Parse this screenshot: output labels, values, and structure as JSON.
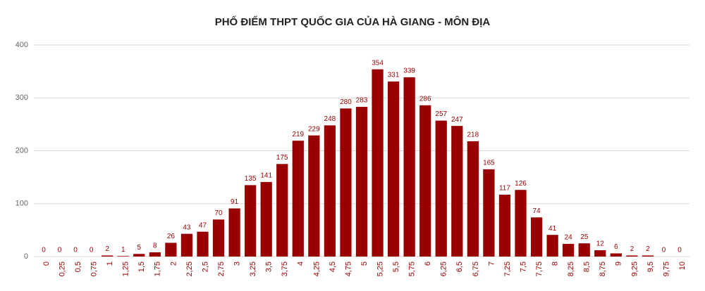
{
  "chart_data": {
    "type": "bar",
    "title": "PHỔ ĐIỂM THPT QUỐC GIA CỦA HÀ GIANG - MÔN ĐỊA",
    "categories": [
      "0",
      "0,25",
      "0,5",
      "0,75",
      "1",
      "1,25",
      "1,5",
      "1,75",
      "2",
      "2,25",
      "2,5",
      "2,75",
      "3",
      "3,25",
      "3,5",
      "3,75",
      "4",
      "4,25",
      "4,5",
      "4,75",
      "5",
      "5,25",
      "5,5",
      "5,75",
      "6",
      "6,25",
      "6,5",
      "6,75",
      "7",
      "7,25",
      "7,5",
      "7,75",
      "8",
      "8,25",
      "8,5",
      "8,75",
      "9",
      "9,25",
      "9,5",
      "9,75",
      "10"
    ],
    "values": [
      0,
      0,
      0,
      0,
      2,
      1,
      5,
      8,
      26,
      43,
      47,
      70,
      91,
      135,
      141,
      175,
      219,
      229,
      248,
      280,
      283,
      354,
      331,
      339,
      286,
      257,
      247,
      218,
      165,
      117,
      126,
      74,
      41,
      24,
      25,
      12,
      6,
      2,
      2,
      0,
      0
    ],
    "color": "#990000",
    "ylim": [
      0,
      400
    ],
    "yticks": [
      0,
      100,
      200,
      300,
      400
    ],
    "grid": true
  }
}
